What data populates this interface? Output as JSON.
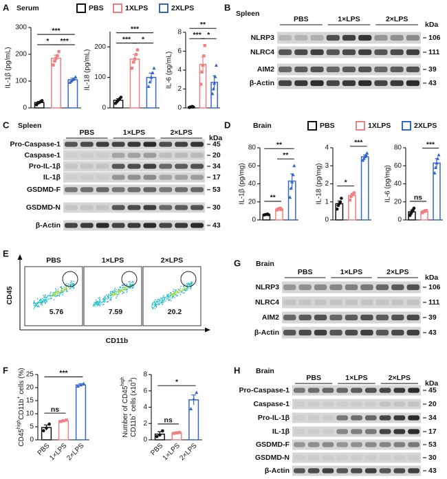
{
  "panels": {
    "A": {
      "label": "A",
      "legend_title": "Serum",
      "legend": [
        {
          "name": "PBS",
          "color": "#111111"
        },
        {
          "name": "1XLPS",
          "color": "#f08080"
        },
        {
          "name": "2XLPS",
          "color": "#3366cc"
        }
      ],
      "charts": [
        {
          "type": "bar",
          "y_label": "IL-1β (pg/mL)",
          "ylim": [
            0,
            300
          ],
          "yticks": [
            0,
            100,
            200,
            300
          ],
          "colors": [
            "#111111",
            "#f08080",
            "#3366cc"
          ],
          "values": [
            20,
            185,
            105
          ],
          "errors": [
            4,
            12,
            6
          ],
          "points": [
            [
              12,
              18,
              20,
              24,
              27
            ],
            [
              160,
              175,
              185,
              195,
              210
            ],
            [
              95,
              100,
              105,
              108,
              115
            ]
          ],
          "brackets": [
            {
              "from": 0,
              "to": 1,
              "label": "*"
            },
            {
              "from": 1,
              "to": 2,
              "label": "***"
            },
            {
              "from": 0,
              "to": 2,
              "label": "***"
            }
          ]
        },
        {
          "type": "bar",
          "y_label": "IL-18 (pg/mL)",
          "ylim": [
            0,
            250
          ],
          "yticks": [
            0,
            100,
            200
          ],
          "colors": [
            "#111111",
            "#f08080",
            "#3366cc"
          ],
          "values": [
            25,
            160,
            100
          ],
          "errors": [
            5,
            15,
            14
          ],
          "points": [
            [
              15,
              20,
              25,
              30,
              35
            ],
            [
              130,
              150,
              160,
              175,
              190
            ],
            [
              70,
              85,
              100,
              115,
              130
            ]
          ],
          "brackets": [
            {
              "from": 0,
              "to": 1,
              "label": "***"
            },
            {
              "from": 1,
              "to": 2,
              "label": "*"
            },
            {
              "from": 0,
              "to": 2,
              "label": "***"
            }
          ]
        },
        {
          "type": "bar",
          "y_label": "IL-6 (pg/mL)",
          "ylim": [
            0,
            8
          ],
          "yticks": [
            0,
            2,
            4,
            6,
            8
          ],
          "colors": [
            "#111111",
            "#f08080",
            "#3366cc"
          ],
          "values": [
            0.1,
            4.6,
            2.7
          ],
          "errors": [
            0.05,
            0.8,
            0.7
          ],
          "points": [
            [
              0.05,
              0.1,
              0.1,
              0.15,
              0.1
            ],
            [
              2.5,
              3.8,
              4.5,
              5.5,
              6.6
            ],
            [
              1.5,
              2.0,
              2.6,
              3.3,
              4.5
            ]
          ],
          "brackets": [
            {
              "from": 0,
              "to": 1,
              "label": "***"
            },
            {
              "from": 1,
              "to": 2,
              "label": "*"
            },
            {
              "from": 0,
              "to": 2,
              "label": "**"
            }
          ]
        }
      ]
    },
    "B": {
      "label": "B",
      "title": "Spleen",
      "groups": [
        "PBS",
        "1×LPS",
        "2×LPS"
      ],
      "kda_label": "kDa",
      "rows": [
        {
          "name": "NLRP3",
          "kda": 106
        },
        {
          "name": "NLRC4",
          "kda": 111
        },
        {
          "name": "AIM2",
          "kda": 39
        },
        {
          "name": "β-Actin",
          "kda": 43
        }
      ]
    },
    "C": {
      "label": "C",
      "title": "Spleen",
      "groups": [
        "PBS",
        "1×LPS",
        "2×LPS"
      ],
      "kda_label": "kDa",
      "rows": [
        {
          "name": "Pro-Caspase-1",
          "kda": 45
        },
        {
          "name": "Caspase-1",
          "kda": 20
        },
        {
          "name": "Pro-IL-1β",
          "kda": 34
        },
        {
          "name": "IL-1β",
          "kda": 17
        },
        {
          "name": "GSDMD-F",
          "kda": 53
        },
        {
          "name": "GSDMD-N",
          "kda": 30
        },
        {
          "name": "β-Actin",
          "kda": 43
        }
      ]
    },
    "D": {
      "label": "D",
      "legend_title": "Brain",
      "legend": [
        {
          "name": "PBS",
          "color": "#111111"
        },
        {
          "name": "1XLPS",
          "color": "#f08080"
        },
        {
          "name": "2XLPS",
          "color": "#3366cc"
        }
      ],
      "charts": [
        {
          "type": "bar",
          "y_label": "IL-1β (pg/mg)",
          "ylim": [
            0,
            80
          ],
          "yticks": [
            0,
            20,
            40,
            60,
            80
          ],
          "colors": [
            "#111111",
            "#f08080",
            "#3366cc"
          ],
          "values": [
            6,
            12,
            43
          ],
          "errors": [
            0.5,
            1,
            8
          ],
          "points": [
            [
              5.5,
              6,
              6,
              6.5,
              5.8
            ],
            [
              11,
              12,
              12.5,
              13,
              11.5
            ],
            [
              25,
              35,
              42,
              50,
              60
            ]
          ],
          "brackets": [
            {
              "from": 0,
              "to": 1,
              "label": "**"
            },
            {
              "from": 1,
              "to": 2,
              "label": "**"
            },
            {
              "from": 0,
              "to": 2,
              "label": "**"
            }
          ]
        },
        {
          "type": "bar",
          "y_label": "IL-18 (pg/mg)",
          "ylim": [
            0,
            4
          ],
          "yticks": [
            0,
            1,
            2,
            3,
            4
          ],
          "colors": [
            "#111111",
            "#f08080",
            "#3366cc"
          ],
          "values": [
            0.9,
            1.35,
            3.5
          ],
          "errors": [
            0.15,
            0.1,
            0.1
          ],
          "points": [
            [
              0.6,
              0.8,
              0.9,
              1.0,
              1.2
            ],
            [
              1.1,
              1.3,
              1.4,
              1.45,
              1.5
            ],
            [
              3.3,
              3.4,
              3.5,
              3.6,
              3.7
            ]
          ],
          "brackets": [
            {
              "from": 0,
              "to": 1,
              "label": "*"
            },
            {
              "from": 1,
              "to": 2,
              "label": "***"
            }
          ]
        },
        {
          "type": "bar",
          "y_label": "IL-6 (pg/mg)",
          "ylim": [
            0,
            80
          ],
          "yticks": [
            0,
            20,
            40,
            60,
            80
          ],
          "colors": [
            "#111111",
            "#f08080",
            "#3366cc"
          ],
          "values": [
            9,
            9.5,
            63
          ],
          "errors": [
            2,
            1,
            5
          ],
          "points": [
            [
              5,
              7,
              9,
              11,
              13
            ],
            [
              8,
              9,
              9.5,
              10,
              10.5
            ],
            [
              52,
              58,
              63,
              68,
              72
            ]
          ],
          "brackets": [
            {
              "from": 0,
              "to": 1,
              "label": "ns"
            },
            {
              "from": 1,
              "to": 2,
              "label": "***"
            }
          ]
        }
      ]
    },
    "E": {
      "label": "E",
      "y_axis": "CD45",
      "x_axis": "CD11b",
      "plots": [
        {
          "name": "PBS",
          "percent": 5.76
        },
        {
          "name": "1×LPS",
          "percent": 7.59
        },
        {
          "name": "2×LPS",
          "percent": 20.2
        }
      ]
    },
    "G": {
      "label": "G",
      "title": "Brain",
      "groups": [
        "PBS",
        "1×LPS",
        "2×LPS"
      ],
      "kda_label": "kDa",
      "rows": [
        {
          "name": "NLRP3",
          "kda": 106
        },
        {
          "name": "NLRC4",
          "kda": 111
        },
        {
          "name": "AIM2",
          "kda": 39
        },
        {
          "name": "β-Actin",
          "kda": 43
        }
      ]
    },
    "F": {
      "label": "F",
      "charts": [
        {
          "type": "bar",
          "y_label_lines": [
            [
              "CD45",
              "high",
              "CD11b",
              "+",
              " cells (%)"
            ]
          ],
          "ylim": [
            0,
            25
          ],
          "yticks": [
            0,
            5,
            10,
            15,
            20,
            25
          ],
          "colors": [
            "#111111",
            "#f08080",
            "#3366cc"
          ],
          "categories": [
            "PBS",
            "1×LPS",
            "2×LPS"
          ],
          "values": [
            4.7,
            7.3,
            21
          ],
          "errors": [
            1,
            0.3,
            0.5
          ],
          "points": [
            [
              3.5,
              4.5,
              6
            ],
            [
              7.0,
              7.3,
              7.6
            ],
            [
              20.5,
              21,
              21.5
            ]
          ],
          "brackets": [
            {
              "from": 0,
              "to": 1,
              "label": "ns"
            },
            {
              "from": 0,
              "to": 2,
              "label": "***"
            }
          ]
        },
        {
          "type": "bar",
          "y_label_lines": [
            [
              "Number of CD45",
              "high"
            ],
            [
              "CD11b",
              "+",
              " cells (x10",
              "3",
              ")"
            ]
          ],
          "ylim": [
            0,
            8
          ],
          "yticks": [
            0,
            2,
            4,
            6,
            8
          ],
          "colors": [
            "#111111",
            "#f08080",
            "#3366cc"
          ],
          "categories": [
            "PBS",
            "1×LPS",
            "2×LPS"
          ],
          "values": [
            0.7,
            0.85,
            4.9
          ],
          "errors": [
            0.3,
            0.1,
            0.6
          ],
          "points": [
            [
              0.4,
              0.6,
              1.1
            ],
            [
              0.8,
              0.85,
              0.9
            ],
            [
              3.8,
              5,
              5.8
            ]
          ],
          "brackets": [
            {
              "from": 0,
              "to": 1,
              "label": "ns"
            },
            {
              "from": 0,
              "to": 2,
              "label": "*"
            }
          ]
        }
      ]
    },
    "H": {
      "label": "H",
      "title": "Brain",
      "groups": [
        "PBS",
        "1×LPS",
        "2×LPS"
      ],
      "kda_label": "kDa",
      "rows": [
        {
          "name": "Pro-Caspase-1",
          "kda": 45
        },
        {
          "name": "Caspase-1",
          "kda": 20
        },
        {
          "name": "Pro-IL-1β",
          "kda": 34
        },
        {
          "name": "IL-1β",
          "kda": 17
        },
        {
          "name": "GSDMD-F",
          "kda": 53
        },
        {
          "name": "GSDMD-N",
          "kda": 30
        },
        {
          "name": "β-Actin",
          "kda": 43
        }
      ]
    }
  }
}
